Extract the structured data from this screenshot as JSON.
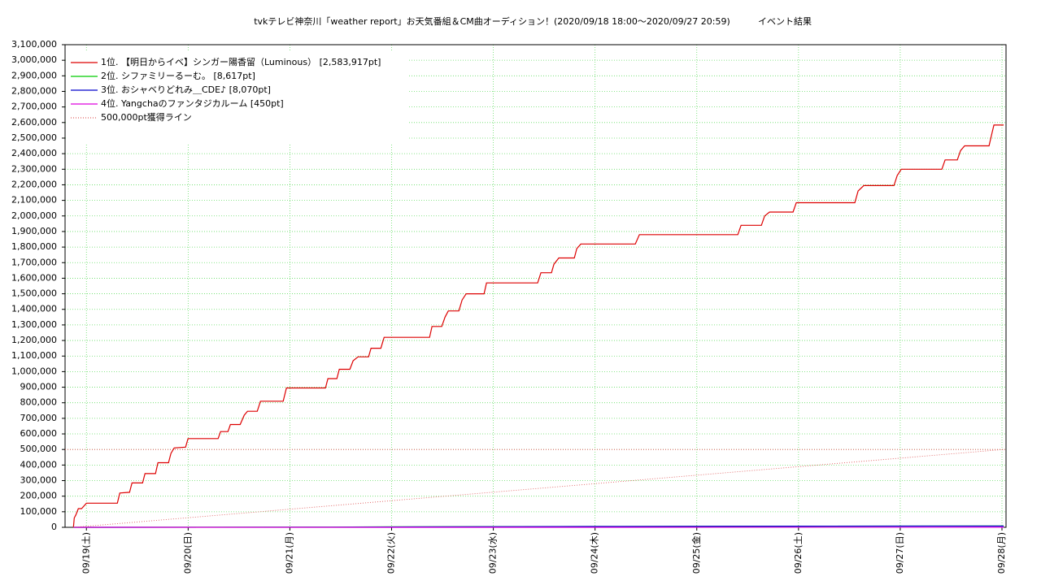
{
  "chart_data": {
    "type": "line",
    "title": "tvkテレビ神奈川「weather report」お天気番組＆CM曲オーディション！(2020/09/18 18:00〜2020/09/27 20:59)",
    "subtitle": "イベント結果",
    "xlim": [
      -0.21,
      9.04
    ],
    "xticks": [
      {
        "value": 0,
        "label": "09/19(土)"
      },
      {
        "value": 1,
        "label": "09/20(日)"
      },
      {
        "value": 2,
        "label": "09/21(月)"
      },
      {
        "value": 3,
        "label": "09/22(火)"
      },
      {
        "value": 4,
        "label": "09/23(水)"
      },
      {
        "value": 5,
        "label": "09/24(木)"
      },
      {
        "value": 6,
        "label": "09/25(金)"
      },
      {
        "value": 7,
        "label": "09/26(土)"
      },
      {
        "value": 8,
        "label": "09/27(日)"
      },
      {
        "value": 9,
        "label": "09/28(月)"
      }
    ],
    "ylim": [
      0,
      3100000
    ],
    "yticks": [
      0,
      {
        "value": 100000,
        "label": "100,000"
      },
      {
        "value": 200000,
        "label": "200,000"
      },
      {
        "value": 300000,
        "label": "300,000"
      },
      {
        "value": 400000,
        "label": "400,000"
      },
      {
        "value": 500000,
        "label": "500,000"
      },
      {
        "value": 600000,
        "label": "600,000"
      },
      {
        "value": 700000,
        "label": "700,000"
      },
      {
        "value": 800000,
        "label": "800,000"
      },
      {
        "value": 900000,
        "label": "900,000"
      },
      {
        "value": 1000000,
        "label": "1,000,000"
      },
      {
        "value": 1100000,
        "label": "1,100,000"
      },
      {
        "value": 1200000,
        "label": "1,200,000"
      },
      {
        "value": 1300000,
        "label": "1,300,000"
      },
      {
        "value": 1400000,
        "label": "1,400,000"
      },
      {
        "value": 1500000,
        "label": "1,500,000"
      },
      {
        "value": 1600000,
        "label": "1,600,000"
      },
      {
        "value": 1700000,
        "label": "1,700,000"
      },
      {
        "value": 1800000,
        "label": "1,800,000"
      },
      {
        "value": 1900000,
        "label": "1,900,000"
      },
      {
        "value": 2000000,
        "label": "2,000,000"
      },
      {
        "value": 2100000,
        "label": "2,100,000"
      },
      {
        "value": 2200000,
        "label": "2,200,000"
      },
      {
        "value": 2300000,
        "label": "2,300,000"
      },
      {
        "value": 2400000,
        "label": "2,400,000"
      },
      {
        "value": 2500000,
        "label": "2,500,000"
      },
      {
        "value": 2600000,
        "label": "2,600,000"
      },
      {
        "value": 2700000,
        "label": "2,700,000"
      },
      {
        "value": 2800000,
        "label": "2,800,000"
      },
      {
        "value": 2900000,
        "label": "2,900,000"
      },
      {
        "value": 3000000,
        "label": "3,000,000"
      },
      {
        "value": 3100000,
        "label": "3,100,000"
      }
    ],
    "grid": true,
    "legend": "upper-left",
    "reference_line": {
      "value": 500000,
      "color": "#e06060"
    },
    "series": [
      {
        "name": "1位. 【明日からイベ】シンガー陽香留（Luminous） [2,583,917pt]",
        "color": "#dd0000",
        "style": "solid",
        "x": [
          -0.128,
          -0.12,
          -0.104,
          -0.08,
          -0.048,
          0,
          0.304,
          0.328,
          0.424,
          0.448,
          0.552,
          0.576,
          0.679,
          0.703,
          0.807,
          0.831,
          0.863,
          0.975,
          0.999,
          1.295,
          1.319,
          1.391,
          1.415,
          1.511,
          1.551,
          1.583,
          1.679,
          1.711,
          1.934,
          1.966,
          2.35,
          2.374,
          2.462,
          2.486,
          2.59,
          2.622,
          2.67,
          2.774,
          2.798,
          2.894,
          2.926,
          3.373,
          3.397,
          3.493,
          3.525,
          3.557,
          3.661,
          3.693,
          3.733,
          3.909,
          3.933,
          4.436,
          4.468,
          4.572,
          4.596,
          4.644,
          4.796,
          4.82,
          4.86,
          5.396,
          5.436,
          6.403,
          6.435,
          6.635,
          6.667,
          6.715,
          6.946,
          6.978,
          7.554,
          7.586,
          7.642,
          7.938,
          7.97,
          8.01,
          8.409,
          8.441,
          8.561,
          8.593,
          8.633,
          8.873,
          8.905,
          8.921,
          9.017
        ],
        "values": [
          0,
          60000,
          80000,
          120000,
          120000,
          155000,
          155000,
          220000,
          225000,
          285000,
          285000,
          345000,
          345000,
          415000,
          415000,
          475000,
          510000,
          515000,
          570000,
          570000,
          615000,
          615000,
          660000,
          660000,
          720000,
          745000,
          745000,
          810000,
          810000,
          895000,
          895000,
          955000,
          955000,
          1015000,
          1015000,
          1070000,
          1095000,
          1095000,
          1150000,
          1150000,
          1220000,
          1220000,
          1290000,
          1290000,
          1350000,
          1390000,
          1390000,
          1460000,
          1500000,
          1500000,
          1570000,
          1570000,
          1635000,
          1635000,
          1690000,
          1730000,
          1730000,
          1790000,
          1820000,
          1820000,
          1880000,
          1880000,
          1940000,
          1940000,
          2000000,
          2025000,
          2025000,
          2085000,
          2085000,
          2160000,
          2195000,
          2195000,
          2260000,
          2300000,
          2300000,
          2360000,
          2360000,
          2420000,
          2450000,
          2450000,
          2540000,
          2583917,
          2583917
        ]
      },
      {
        "name": "2位. シファミリーるーむ。 [8,617pt]",
        "color": "#00cc00",
        "style": "solid",
        "x": [
          -0.128,
          2.4,
          3.0,
          5.0,
          7.0,
          9.017
        ],
        "values": [
          0,
          1500,
          3000,
          5000,
          7000,
          8617
        ]
      },
      {
        "name": "3位. おシャベりどれみ＿CDE♪ [8,070pt]",
        "color": "#0000cc",
        "style": "solid",
        "x": [
          -0.128,
          2.4,
          3.0,
          5.0,
          7.0,
          9.017
        ],
        "values": [
          0,
          500,
          2000,
          5000,
          7500,
          8070
        ]
      },
      {
        "name": "4位. Yangchaのファンタジカルーム [450pt]",
        "color": "#dd00dd",
        "style": "solid",
        "x": [
          -0.128,
          4.0,
          9.017
        ],
        "values": [
          0,
          200,
          450
        ]
      },
      {
        "name": "500,000pt獲得ライン",
        "color": "#e06060",
        "style": "dotted",
        "x": [
          -0.128,
          9.017
        ],
        "values": [
          0,
          500000
        ]
      }
    ]
  }
}
